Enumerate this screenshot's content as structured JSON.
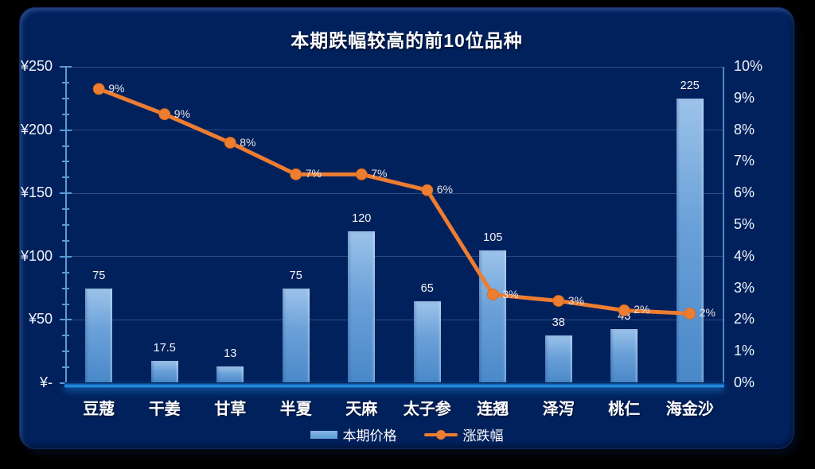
{
  "chart_data": {
    "type": "combo-bar-line",
    "title": "本期跌幅较高的前10位品种",
    "categories": [
      "豆蔻",
      "干姜",
      "甘草",
      "半夏",
      "天麻",
      "太子参",
      "连翘",
      "泽泻",
      "桃仁",
      "海金沙"
    ],
    "series": [
      {
        "name": "本期价格",
        "type": "bar",
        "axis": "left",
        "color": "#5B9BD5",
        "values": [
          75,
          17.5,
          13,
          75,
          120,
          65,
          105,
          38,
          43,
          225
        ],
        "labels": [
          "75",
          "17.5",
          "13",
          "75",
          "120",
          "65",
          "105",
          "38",
          "43",
          "225"
        ]
      },
      {
        "name": "涨跌幅",
        "type": "line",
        "axis": "right",
        "color": "#ED7D31",
        "values_pct": [
          9.3,
          8.5,
          7.6,
          6.6,
          6.6,
          6.1,
          2.8,
          2.6,
          2.3,
          2.2
        ],
        "labels": [
          "9%",
          "9%",
          "8%",
          "7%",
          "7%",
          "6%",
          "3%",
          "3%",
          "2%",
          "2%"
        ]
      }
    ],
    "left_axis": {
      "min": 0,
      "max": 250,
      "major_unit": 50,
      "minor_unit": 12.5,
      "tick_labels": [
        "¥250",
        "¥200",
        "¥150",
        "¥100",
        "¥50",
        "¥-"
      ]
    },
    "right_axis": {
      "min_pct": 0,
      "max_pct": 10,
      "major_unit_pct": 1,
      "tick_labels": [
        "10%",
        "9%",
        "8%",
        "7%",
        "6%",
        "5%",
        "4%",
        "3%",
        "2%",
        "1%",
        "0%"
      ]
    },
    "legend": [
      {
        "label": "本期价格",
        "swatch": "bar"
      },
      {
        "label": "涨跌幅",
        "swatch": "line"
      }
    ],
    "layout_hints": {
      "grid": "horizontal-major-only",
      "legend_position": "bottom-center"
    },
    "colors": {
      "background": "#002060",
      "axis": "#5B9BD5",
      "bar": "#5B9BD5",
      "line": "#ED7D31",
      "text": "#FFFFFF",
      "baseline_glow": "#1E86D8"
    }
  }
}
